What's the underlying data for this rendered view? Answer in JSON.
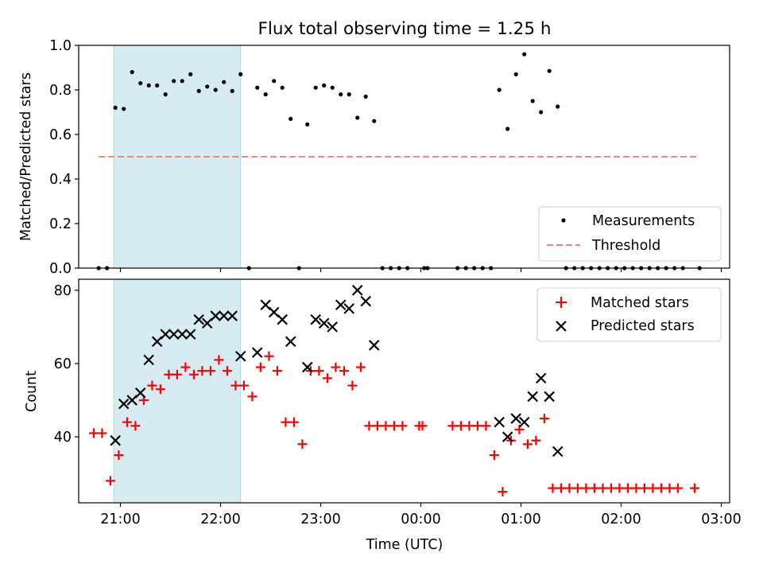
{
  "figure": {
    "title": "Flux total observing time = 1.25 h",
    "xlabel": "Time (UTC)"
  },
  "chart_data": [
    {
      "type": "scatter",
      "ylabel": "Matched/Predicted stars",
      "ylim": [
        0,
        1.0
      ],
      "yticks": [
        "0.0",
        "0.2",
        "0.4",
        "0.6",
        "0.8",
        "1.0"
      ],
      "xlim": [
        "20:35",
        "03:05"
      ],
      "xticks": [
        "21:00",
        "22:00",
        "23:00",
        "00:00",
        "01:00",
        "02:00",
        "03:00"
      ],
      "shaded_interval": [
        "20:56",
        "22:12"
      ],
      "legend": {
        "position": "lower-right",
        "entries": [
          "Measurements",
          "Threshold"
        ]
      },
      "threshold": {
        "name": "Threshold",
        "value": 0.5,
        "x_range": [
          "20:47",
          "02:47"
        ],
        "color": "#ff7f7f"
      },
      "series": [
        {
          "name": "Measurements",
          "marker": "dot",
          "color": "#000000",
          "points": [
            [
              "20:47",
              0
            ],
            [
              "20:52",
              0
            ],
            [
              "20:57",
              0.72
            ],
            [
              "21:02",
              0.715
            ],
            [
              "21:07",
              0.88
            ],
            [
              "21:12",
              0.83
            ],
            [
              "21:17",
              0.82
            ],
            [
              "21:22",
              0.82
            ],
            [
              "21:27",
              0.78
            ],
            [
              "21:32",
              0.84
            ],
            [
              "21:37",
              0.84
            ],
            [
              "21:42",
              0.87
            ],
            [
              "21:47",
              0.795
            ],
            [
              "21:52",
              0.815
            ],
            [
              "21:57",
              0.8
            ],
            [
              "22:02",
              0.835
            ],
            [
              "22:07",
              0.795
            ],
            [
              "22:12",
              0.87
            ],
            [
              "22:17",
              0
            ],
            [
              "22:22",
              0.81
            ],
            [
              "22:27",
              0.78
            ],
            [
              "22:32",
              0.84
            ],
            [
              "22:37",
              0.81
            ],
            [
              "22:42",
              0.67
            ],
            [
              "22:47",
              0
            ],
            [
              "22:52",
              0.645
            ],
            [
              "22:57",
              0.81
            ],
            [
              "23:02",
              0.82
            ],
            [
              "23:07",
              0.81
            ],
            [
              "23:12",
              0.78
            ],
            [
              "23:17",
              0.78
            ],
            [
              "23:22",
              0.675
            ],
            [
              "23:27",
              0.77
            ],
            [
              "23:32",
              0.66
            ],
            [
              "23:37",
              0
            ],
            [
              "23:42",
              0
            ],
            [
              "23:47",
              0
            ],
            [
              "23:52",
              0
            ],
            [
              "00:02",
              0
            ],
            [
              "00:04",
              0
            ],
            [
              "00:22",
              0
            ],
            [
              "00:27",
              0
            ],
            [
              "00:32",
              0
            ],
            [
              "00:37",
              0
            ],
            [
              "00:42",
              0
            ],
            [
              "00:47",
              0.8
            ],
            [
              "00:52",
              0.625
            ],
            [
              "00:57",
              0.87
            ],
            [
              "01:02",
              0.96
            ],
            [
              "01:07",
              0.75
            ],
            [
              "01:12",
              0.7
            ],
            [
              "01:17",
              0.885
            ],
            [
              "01:22",
              0.725
            ],
            [
              "01:27",
              0
            ],
            [
              "01:32",
              0
            ],
            [
              "01:37",
              0
            ],
            [
              "01:42",
              0
            ],
            [
              "01:47",
              0
            ],
            [
              "01:52",
              0
            ],
            [
              "01:57",
              0
            ],
            [
              "02:02",
              0
            ],
            [
              "02:07",
              0
            ],
            [
              "02:12",
              0
            ],
            [
              "02:17",
              0
            ],
            [
              "02:22",
              0
            ],
            [
              "02:27",
              0
            ],
            [
              "02:32",
              0
            ],
            [
              "02:37",
              0
            ],
            [
              "02:47",
              0
            ]
          ]
        }
      ]
    },
    {
      "type": "scatter",
      "ylabel": "Count",
      "ylim": [
        22,
        83
      ],
      "yticks": [
        "40",
        "60",
        "80"
      ],
      "xlim": [
        "20:35",
        "03:05"
      ],
      "xticks": [
        "21:00",
        "22:00",
        "23:00",
        "00:00",
        "01:00",
        "02:00",
        "03:00"
      ],
      "shaded_interval": [
        "20:56",
        "22:12"
      ],
      "legend": {
        "position": "upper-right",
        "entries": [
          "Matched stars",
          "Predicted stars"
        ]
      },
      "series": [
        {
          "name": "Matched stars",
          "marker": "plus",
          "color": "#ff0000",
          "points": [
            [
              "20:44",
              41
            ],
            [
              "20:49",
              41
            ],
            [
              "20:54",
              28
            ],
            [
              "20:59",
              35
            ],
            [
              "21:04",
              44
            ],
            [
              "21:09",
              43
            ],
            [
              "21:14",
              50
            ],
            [
              "21:19",
              54
            ],
            [
              "21:24",
              53
            ],
            [
              "21:29",
              57
            ],
            [
              "21:34",
              57
            ],
            [
              "21:39",
              59
            ],
            [
              "21:44",
              57
            ],
            [
              "21:49",
              58
            ],
            [
              "21:54",
              58
            ],
            [
              "21:59",
              61
            ],
            [
              "22:04",
              58
            ],
            [
              "22:09",
              54
            ],
            [
              "22:14",
              54
            ],
            [
              "22:19",
              51
            ],
            [
              "22:24",
              59
            ],
            [
              "22:29",
              62
            ],
            [
              "22:34",
              58
            ],
            [
              "22:39",
              44
            ],
            [
              "22:44",
              44
            ],
            [
              "22:49",
              38
            ],
            [
              "22:54",
              58
            ],
            [
              "22:59",
              58
            ],
            [
              "23:04",
              56
            ],
            [
              "23:09",
              59
            ],
            [
              "23:14",
              58
            ],
            [
              "23:19",
              54
            ],
            [
              "23:24",
              59
            ],
            [
              "23:29",
              43
            ],
            [
              "23:34",
              43
            ],
            [
              "23:39",
              43
            ],
            [
              "23:44",
              43
            ],
            [
              "23:49",
              43
            ],
            [
              "23:59",
              43
            ],
            [
              "00:01",
              43
            ],
            [
              "00:19",
              43
            ],
            [
              "00:24",
              43
            ],
            [
              "00:29",
              43
            ],
            [
              "00:34",
              43
            ],
            [
              "00:39",
              43
            ],
            [
              "00:44",
              35
            ],
            [
              "00:49",
              25
            ],
            [
              "00:54",
              39
            ],
            [
              "00:59",
              42
            ],
            [
              "01:04",
              38
            ],
            [
              "01:09",
              39
            ],
            [
              "01:14",
              45
            ],
            [
              "01:19",
              26
            ],
            [
              "01:24",
              26
            ],
            [
              "01:29",
              26
            ],
            [
              "01:34",
              26
            ],
            [
              "01:39",
              26
            ],
            [
              "01:44",
              26
            ],
            [
              "01:49",
              26
            ],
            [
              "01:54",
              26
            ],
            [
              "01:59",
              26
            ],
            [
              "02:04",
              26
            ],
            [
              "02:09",
              26
            ],
            [
              "02:14",
              26
            ],
            [
              "02:19",
              26
            ],
            [
              "02:24",
              26
            ],
            [
              "02:29",
              26
            ],
            [
              "02:34",
              26
            ],
            [
              "02:44",
              26
            ]
          ]
        },
        {
          "name": "Predicted stars",
          "marker": "x",
          "color": "#000000",
          "points": [
            [
              "20:57",
              39
            ],
            [
              "21:02",
              49
            ],
            [
              "21:07",
              50
            ],
            [
              "21:12",
              52
            ],
            [
              "21:17",
              61
            ],
            [
              "21:22",
              66
            ],
            [
              "21:27",
              68
            ],
            [
              "21:32",
              68
            ],
            [
              "21:37",
              68
            ],
            [
              "21:42",
              68
            ],
            [
              "21:47",
              72
            ],
            [
              "21:52",
              71
            ],
            [
              "21:57",
              73
            ],
            [
              "22:02",
              73
            ],
            [
              "22:07",
              73
            ],
            [
              "22:12",
              62
            ],
            [
              "22:22",
              63
            ],
            [
              "22:27",
              76
            ],
            [
              "22:32",
              74
            ],
            [
              "22:37",
              72
            ],
            [
              "22:42",
              66
            ],
            [
              "22:52",
              59
            ],
            [
              "22:57",
              72
            ],
            [
              "23:02",
              71
            ],
            [
              "23:07",
              70
            ],
            [
              "23:12",
              76
            ],
            [
              "23:17",
              75
            ],
            [
              "23:22",
              80
            ],
            [
              "23:27",
              77
            ],
            [
              "23:32",
              65
            ],
            [
              "00:47",
              44
            ],
            [
              "00:52",
              40
            ],
            [
              "00:57",
              45
            ],
            [
              "01:02",
              44
            ],
            [
              "01:07",
              51
            ],
            [
              "01:12",
              56
            ],
            [
              "01:17",
              51
            ],
            [
              "01:22",
              36
            ]
          ]
        }
      ]
    }
  ]
}
